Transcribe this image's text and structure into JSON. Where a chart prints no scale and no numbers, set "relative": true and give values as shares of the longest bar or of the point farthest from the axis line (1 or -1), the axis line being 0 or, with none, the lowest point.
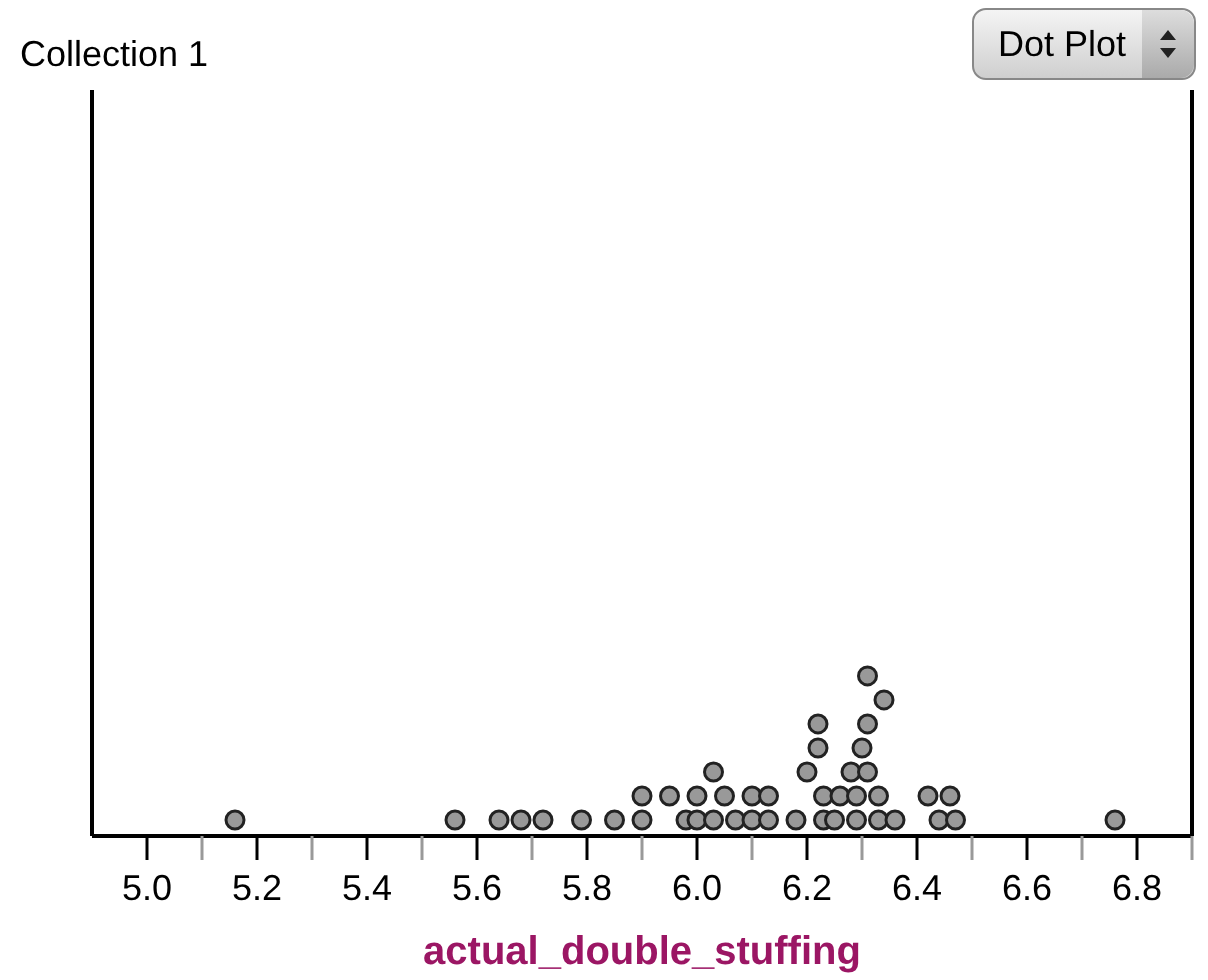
{
  "chart_data": {
    "type": "scatter",
    "title": "Collection 1",
    "xlabel": "actual_double_stuffing",
    "annotations": [
      "Dot Plot"
    ],
    "relative": true,
    "marker": "circle",
    "color": "#999999",
    "grid": false,
    "x": [
      5.16,
      5.56,
      5.64,
      5.68,
      5.72,
      5.79,
      5.85,
      5.9,
      5.98,
      6.0,
      6.03,
      6.07,
      6.1,
      6.13,
      6.18,
      6.23,
      6.25,
      6.29,
      6.33,
      6.36,
      6.44,
      6.47,
      6.76,
      5.9,
      5.95,
      6.0,
      6.05,
      6.1,
      6.13,
      6.23,
      6.26,
      6.29,
      6.33,
      6.42,
      6.46,
      6.03,
      6.2,
      6.28,
      6.31,
      6.22,
      6.3,
      6.22,
      6.31,
      6.34,
      6.31
    ],
    "values": [
      0.1,
      0.1,
      0.1,
      0.1,
      0.1,
      0.1,
      0.1,
      0.1,
      0.1,
      0.1,
      0.1,
      0.1,
      0.1,
      0.1,
      0.1,
      0.1,
      0.1,
      0.1,
      0.1,
      0.1,
      0.1,
      0.1,
      0.1,
      0.25,
      0.25,
      0.25,
      0.25,
      0.25,
      0.25,
      0.25,
      0.25,
      0.25,
      0.25,
      0.25,
      0.25,
      0.4,
      0.4,
      0.4,
      0.4,
      0.55,
      0.55,
      0.7,
      0.7,
      0.85,
      1
    ],
    "xlim": [
      4.9,
      6.9
    ],
    "xticks": [
      {
        "value": 5,
        "label": "5.0"
      },
      {
        "value": 5.1,
        "label": null
      },
      5.2,
      {
        "value": 5.3,
        "label": null
      },
      5.4,
      {
        "value": 5.5,
        "label": null
      },
      5.6,
      {
        "value": 5.7,
        "label": null
      },
      5.8,
      {
        "value": 5.9,
        "label": null
      },
      {
        "value": 6,
        "label": "6.0"
      },
      {
        "value": 6.1,
        "label": null
      },
      6.2,
      {
        "value": 6.3,
        "label": null
      },
      6.4,
      {
        "value": 6.5,
        "label": null
      },
      6.6,
      {
        "value": 6.7,
        "label": null
      },
      6.8,
      {
        "value": 6.9,
        "label": null
      }
    ]
  }
}
